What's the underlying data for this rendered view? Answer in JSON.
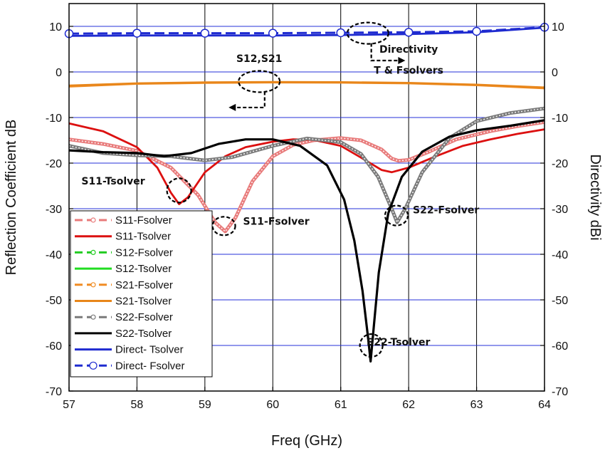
{
  "chart_data": {
    "type": "line",
    "xlabel": "Freq (GHz)",
    "ylabel": "Reflection Coefficient dB",
    "ylabel_right": "Directivity dBi",
    "xlim": [
      57,
      64
    ],
    "ylim": [
      -70,
      15
    ],
    "xticks": [
      57,
      58,
      59,
      60,
      61,
      62,
      63,
      64
    ],
    "yticks": [
      10,
      0,
      -10,
      -20,
      -30,
      -40,
      -50,
      -60,
      -70
    ],
    "grid": true,
    "legend_position": "bottom-left",
    "series": [
      {
        "name": "S11-Fsolver",
        "color": "#e87a7a",
        "dashed": true,
        "marker": true,
        "style": "beaded",
        "points": [
          [
            57,
            -14.8
          ],
          [
            57.5,
            -15.8
          ],
          [
            58,
            -17.3
          ],
          [
            58.5,
            -21
          ],
          [
            58.9,
            -27
          ],
          [
            59.15,
            -33
          ],
          [
            59.3,
            -35
          ],
          [
            59.45,
            -32
          ],
          [
            59.7,
            -24
          ],
          [
            60,
            -18.5
          ],
          [
            60.3,
            -16
          ],
          [
            60.6,
            -15
          ],
          [
            61,
            -14.5
          ],
          [
            61.3,
            -15
          ],
          [
            61.6,
            -17
          ],
          [
            61.75,
            -19
          ],
          [
            61.85,
            -19.5
          ],
          [
            62,
            -19.3
          ],
          [
            62.3,
            -17.5
          ],
          [
            62.7,
            -14.8
          ],
          [
            63.2,
            -13
          ],
          [
            63.6,
            -11.9
          ],
          [
            64,
            -11
          ]
        ]
      },
      {
        "name": "S11-Tsolver",
        "color": "#dc1010",
        "dashed": false,
        "marker": false,
        "points": [
          [
            57,
            -11.3
          ],
          [
            57.5,
            -13
          ],
          [
            58,
            -16.5
          ],
          [
            58.3,
            -21
          ],
          [
            58.5,
            -26.5
          ],
          [
            58.62,
            -29
          ],
          [
            58.75,
            -27.5
          ],
          [
            59,
            -22
          ],
          [
            59.3,
            -18.5
          ],
          [
            59.6,
            -16.5
          ],
          [
            60,
            -15.3
          ],
          [
            60.3,
            -14.8
          ],
          [
            60.6,
            -14.9
          ],
          [
            61,
            -16.2
          ],
          [
            61.3,
            -18.8
          ],
          [
            61.6,
            -21.5
          ],
          [
            61.75,
            -22
          ],
          [
            62,
            -21
          ],
          [
            62.4,
            -18.5
          ],
          [
            62.8,
            -16.2
          ],
          [
            63.2,
            -14.8
          ],
          [
            63.6,
            -13.6
          ],
          [
            64,
            -12.6
          ]
        ]
      },
      {
        "name": "S12-Fsolver",
        "color": "#22cc22",
        "dashed": true,
        "marker": true,
        "style": "hidden",
        "points": []
      },
      {
        "name": "S12-Tsolver",
        "color": "#22dd22",
        "dashed": false,
        "marker": false,
        "style": "hidden",
        "points": []
      },
      {
        "name": "S21-Fsolver",
        "color": "#f08c24",
        "dashed": true,
        "marker": true,
        "style": "plain",
        "points": [
          [
            57,
            -3.2
          ],
          [
            58,
            -2.6
          ],
          [
            59,
            -2.4
          ],
          [
            60,
            -2.3
          ],
          [
            61,
            -2.35
          ],
          [
            62,
            -2.5
          ],
          [
            63,
            -2.9
          ],
          [
            64,
            -3.6
          ]
        ]
      },
      {
        "name": "S21-Tsolver",
        "color": "#e8861a",
        "dashed": false,
        "marker": false,
        "points": [
          [
            57,
            -3.0
          ],
          [
            58,
            -2.5
          ],
          [
            59,
            -2.3
          ],
          [
            60,
            -2.2
          ],
          [
            61,
            -2.25
          ],
          [
            62,
            -2.4
          ],
          [
            63,
            -2.8
          ],
          [
            64,
            -3.4
          ]
        ]
      },
      {
        "name": "S22-Fsolver",
        "color": "#7a7a7a",
        "dashed": true,
        "marker": true,
        "style": "beaded",
        "points": [
          [
            57,
            -16.2
          ],
          [
            57.5,
            -17.8
          ],
          [
            58,
            -18.3
          ],
          [
            58.5,
            -18.5
          ],
          [
            59,
            -19.4
          ],
          [
            59.4,
            -18.7
          ],
          [
            60,
            -16.2
          ],
          [
            60.5,
            -14.6
          ],
          [
            61,
            -15.4
          ],
          [
            61.3,
            -18
          ],
          [
            61.55,
            -23
          ],
          [
            61.75,
            -30
          ],
          [
            61.83,
            -33
          ],
          [
            61.95,
            -30
          ],
          [
            62.2,
            -22
          ],
          [
            62.6,
            -14.5
          ],
          [
            63,
            -10.8
          ],
          [
            63.5,
            -9
          ],
          [
            64,
            -8
          ]
        ]
      },
      {
        "name": "S22-Tsolver",
        "color": "#000000",
        "dashed": false,
        "marker": false,
        "points": [
          [
            57,
            -17.2
          ],
          [
            57.5,
            -17.6
          ],
          [
            58,
            -17.8
          ],
          [
            58.4,
            -18.5
          ],
          [
            58.8,
            -17.8
          ],
          [
            59.2,
            -15.8
          ],
          [
            59.6,
            -14.8
          ],
          [
            60,
            -14.8
          ],
          [
            60.4,
            -16.2
          ],
          [
            60.8,
            -20.5
          ],
          [
            61.05,
            -28
          ],
          [
            61.2,
            -37
          ],
          [
            61.32,
            -48
          ],
          [
            61.4,
            -58
          ],
          [
            61.44,
            -63.5
          ],
          [
            61.48,
            -57
          ],
          [
            61.56,
            -44
          ],
          [
            61.7,
            -31
          ],
          [
            61.9,
            -23
          ],
          [
            62.2,
            -17.5
          ],
          [
            62.6,
            -14.2
          ],
          [
            63,
            -12.8
          ],
          [
            63.5,
            -11.8
          ],
          [
            64,
            -10.6
          ]
        ]
      },
      {
        "name": "Direct- Tsolver",
        "color": "#1f2bd0",
        "dashed": false,
        "marker": false,
        "points": [
          [
            57,
            7.9
          ],
          [
            58,
            8.0
          ],
          [
            59,
            8.0
          ],
          [
            60,
            8.0
          ],
          [
            61,
            8.1
          ],
          [
            62,
            8.3
          ],
          [
            63,
            8.7
          ],
          [
            64,
            9.7
          ]
        ]
      },
      {
        "name": "Direct- Fsolver",
        "color": "#1f2bd0",
        "dashed": true,
        "marker": true,
        "style": "circles",
        "points": [
          [
            57,
            8.4
          ],
          [
            58,
            8.5
          ],
          [
            59,
            8.5
          ],
          [
            60,
            8.5
          ],
          [
            61,
            8.6
          ],
          [
            62,
            8.7
          ],
          [
            63,
            8.9
          ],
          [
            64,
            9.8
          ]
        ]
      }
    ],
    "annotations": [
      {
        "text": "S12,S21",
        "x": 59.8,
        "y": 2.2
      },
      {
        "text": "Directivity",
        "x": 62.0,
        "y": 4.2
      },
      {
        "text": "T & Fsolvers",
        "x": 62.0,
        "y": -0.4
      },
      {
        "text": "S11-Tsolver",
        "x": 57.65,
        "y": -24.7
      },
      {
        "text": "S11-Fsolver",
        "x": 60.05,
        "y": -33.5
      },
      {
        "text": "S22-Fsolver",
        "x": 62.55,
        "y": -31.0
      },
      {
        "text": "S22-Tsolver",
        "x": 61.85,
        "y": -60.0
      }
    ]
  }
}
